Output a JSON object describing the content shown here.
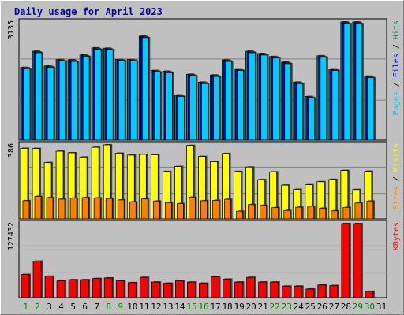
{
  "chart_data": {
    "type": "bar",
    "title": "Daily usage for April 2023",
    "categories": [
      "1",
      "2",
      "3",
      "4",
      "5",
      "6",
      "7",
      "8",
      "9",
      "10",
      "11",
      "12",
      "13",
      "14",
      "15",
      "16",
      "17",
      "18",
      "19",
      "20",
      "21",
      "22",
      "23",
      "24",
      "25",
      "26",
      "27",
      "28",
      "29",
      "30",
      "31"
    ],
    "weekend_days": [
      "1",
      "2",
      "8",
      "9",
      "15",
      "16",
      "22",
      "23",
      "29",
      "30"
    ],
    "panels": [
      {
        "name": "top",
        "max_label": "3135",
        "ylim": [
          0,
          3135
        ],
        "grid": true,
        "axis_legend": [
          {
            "text": "Pages",
            "color": "#00ccff"
          },
          {
            "text": "Files",
            "color": "#0000ff"
          },
          {
            "text": "Hits",
            "color": "#008040"
          }
        ],
        "series": [
          {
            "name": "Hits",
            "color": "#008080",
            "values": [
              1930,
              2360,
              1970,
              2140,
              2130,
              2260,
              2450,
              2440,
              2140,
              2140,
              2760,
              1850,
              1830,
              1200,
              1750,
              1540,
              1730,
              2130,
              1890,
              2360,
              2300,
              2220,
              2070,
              1540,
              1160,
              2240,
              1890,
              3135,
              3135,
              1700,
              0
            ]
          },
          {
            "name": "Files",
            "color": "#0000ff",
            "values": [
              1920,
              2340,
              1950,
              2120,
              2110,
              2240,
              2430,
              2420,
              2130,
              2120,
              2740,
              1830,
              1810,
              1180,
              1730,
              1520,
              1710,
              2110,
              1870,
              2340,
              2280,
              2200,
              2050,
              1520,
              1140,
              2220,
              1870,
              3110,
              3110,
              1680,
              0
            ]
          },
          {
            "name": "Pages",
            "color": "#00ccff",
            "values": [
              1900,
              2320,
              1930,
              2100,
              2090,
              2220,
              2410,
              2400,
              2110,
              2100,
              2720,
              1810,
              1790,
              1160,
              1710,
              1500,
              1690,
              2090,
              1850,
              2320,
              2260,
              2180,
              2030,
              1500,
              1120,
              2200,
              1850,
              3090,
              3090,
              1660,
              0
            ]
          }
        ]
      },
      {
        "name": "middle",
        "max_label": "386",
        "ylim": [
          0,
          386
        ],
        "grid": true,
        "axis_legend": [
          {
            "text": "Sites",
            "color": "#ff8000"
          },
          {
            "text": "Visits",
            "color": "#ffff00"
          }
        ],
        "series": [
          {
            "name": "Visits",
            "color": "#ffff00",
            "values": [
              368,
              367,
              293,
              353,
              345,
              323,
              373,
              386,
              343,
              333,
              337,
              335,
              247,
              273,
              383,
              326,
              298,
              341,
              247,
              270,
              205,
              245,
              176,
              154,
              178,
              194,
              206,
              252,
              153,
              248,
              0
            ]
          },
          {
            "name": "Sites",
            "color": "#ff8000",
            "values": [
              95,
              117,
              111,
              103,
              108,
              111,
              109,
              106,
              99,
              89,
              104,
              93,
              85,
              80,
              113,
              95,
              97,
              102,
              40,
              75,
              71,
              59,
              44,
              61,
              66,
              56,
              42,
              60,
              83,
              93,
              0
            ]
          }
        ]
      },
      {
        "name": "bottom",
        "max_label": "127432",
        "ylim": [
          0,
          127432
        ],
        "grid": true,
        "axis_legend": [
          {
            "text": "KBytes",
            "color": "#ff0000"
          }
        ],
        "series": [
          {
            "name": "KBytes",
            "color": "#ff0000",
            "values": [
              40000,
              63000,
              37000,
              29000,
              31000,
              31000,
              33000,
              34000,
              29000,
              26000,
              35000,
              27000,
              25000,
              29000,
              27000,
              25000,
              36000,
              32000,
              27000,
              35000,
              27000,
              27000,
              20000,
              20000,
              15000,
              22000,
              21000,
              127432,
              127432,
              11000,
              0
            ]
          }
        ]
      }
    ]
  }
}
